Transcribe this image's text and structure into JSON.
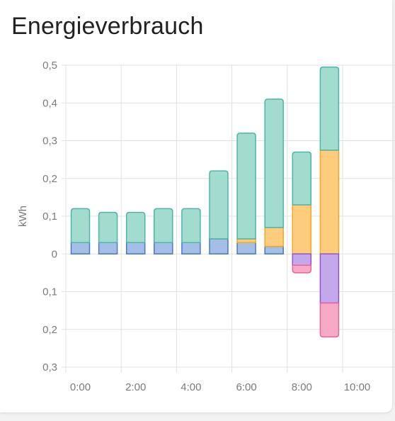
{
  "card": {
    "title": "Energieverbrauch"
  },
  "colors": {
    "grid_consumption": "#a2dccf",
    "grid_consumption_stroke": "#4db6a6",
    "solar": "#fdcd7d",
    "solar_stroke": "#f5a623",
    "battery_in": "#a3bfe6",
    "battery_in_stroke": "#4a78c8",
    "battery_out": "#c4a8ec",
    "battery_out_stroke": "#8b55d4",
    "grid_return": "#f5a9c4",
    "grid_return_stroke": "#e66796"
  },
  "chart_data": {
    "type": "bar",
    "stacked": true,
    "ylabel": "kWh",
    "ylim": [
      -0.3,
      0.5
    ],
    "yticks": [
      0.5,
      0.4,
      0.3,
      0.2,
      0.1,
      0,
      -0.1,
      -0.2,
      -0.3
    ],
    "ytick_labels": [
      "0,5",
      "0,4",
      "0,3",
      "0,2",
      "0,1",
      "0",
      "0,1",
      "0,2",
      "0,3"
    ],
    "xtick_labels": [
      "0:00",
      "2:00",
      "4:00",
      "6:00",
      "8:00",
      "10:00"
    ],
    "categories": [
      "0:00",
      "1:00",
      "2:00",
      "3:00",
      "4:00",
      "5:00",
      "6:00",
      "7:00",
      "8:00",
      "9:00"
    ],
    "grid": true,
    "legend": "none",
    "series": [
      {
        "key": "battery_in",
        "values": [
          0.03,
          0.03,
          0.03,
          0.03,
          0.03,
          0.04,
          0.03,
          0.02,
          0,
          0
        ]
      },
      {
        "key": "solar",
        "values": [
          0,
          0,
          0,
          0,
          0,
          0,
          0.01,
          0.05,
          0.13,
          0.275
        ]
      },
      {
        "key": "grid_consumption",
        "values": [
          0.09,
          0.08,
          0.08,
          0.09,
          0.09,
          0.18,
          0.28,
          0.34,
          0.14,
          0.22
        ]
      },
      {
        "key": "battery_out",
        "values": [
          0,
          0,
          0,
          0,
          0,
          0,
          0,
          0,
          -0.03,
          -0.13
        ]
      },
      {
        "key": "grid_return",
        "values": [
          0,
          0,
          0,
          0,
          0,
          0,
          0,
          0,
          -0.02,
          -0.09
        ]
      }
    ]
  }
}
